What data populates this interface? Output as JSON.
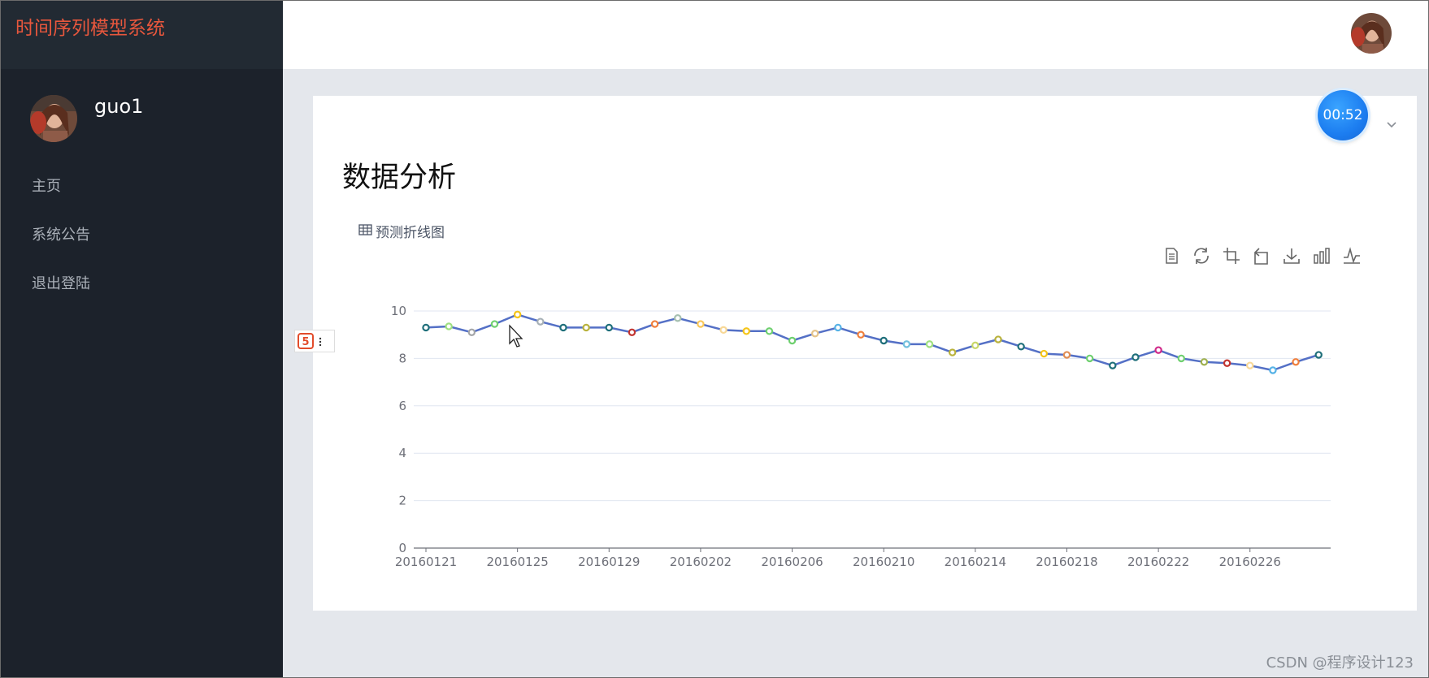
{
  "app": {
    "title": "时间序列模型系统",
    "user_name": "guo1"
  },
  "sidebar": {
    "items": [
      {
        "label": "主页"
      },
      {
        "label": "系统公告"
      },
      {
        "label": "退出登陆"
      }
    ]
  },
  "main": {
    "page_title": "数据分析",
    "tab_label": "预测折线图",
    "timer": "00:52",
    "toolbox": [
      "data-view-icon",
      "restore-icon",
      "zoom-icon",
      "zoom-reset-icon",
      "download-icon",
      "bar-chart-icon",
      "line-chart-icon"
    ]
  },
  "watermark": "CSDN @程序设计123",
  "colors": {
    "brand": "#e8573d",
    "sidebar_bg": "#1c222b",
    "line": "#5470c6",
    "timer": "#1c7df0"
  },
  "chart_data": {
    "type": "line",
    "ylim": [
      0,
      10
    ],
    "yticks": [
      0,
      2,
      4,
      6,
      8,
      10
    ],
    "xtick_labels": [
      "20160121",
      "20160125",
      "20160129",
      "20160202",
      "20160206",
      "20160210",
      "20160214",
      "20160218",
      "20160222",
      "20160226"
    ],
    "x": [
      "20160121",
      "20160122",
      "20160123",
      "20160124",
      "20160125",
      "20160126",
      "20160127",
      "20160128",
      "20160129",
      "20160130",
      "20160131",
      "20160201",
      "20160202",
      "20160203",
      "20160204",
      "20160205",
      "20160206",
      "20160207",
      "20160208",
      "20160209",
      "20160210",
      "20160211",
      "20160212",
      "20160213",
      "20160214",
      "20160215",
      "20160216",
      "20160217",
      "20160218",
      "20160219",
      "20160220",
      "20160221",
      "20160222",
      "20160223",
      "20160224",
      "20160225",
      "20160226",
      "20160227",
      "20160228",
      "20160229"
    ],
    "values": [
      9.3,
      9.35,
      9.1,
      9.45,
      9.85,
      9.55,
      9.3,
      9.3,
      9.3,
      9.1,
      9.45,
      9.7,
      9.45,
      9.2,
      9.15,
      9.15,
      8.75,
      9.05,
      9.3,
      9.0,
      8.75,
      8.6,
      8.6,
      8.25,
      8.55,
      8.8,
      8.5,
      8.2,
      8.15,
      8.0,
      7.7,
      8.05,
      8.35,
      8.0,
      7.85,
      7.8,
      7.7,
      7.5,
      7.85,
      8.15
    ],
    "point_colors": [
      "#1f6f7a",
      "#9fe080",
      "#a4a6a8",
      "#6fd06f",
      "#f5c518",
      "#a7b0b6",
      "#1f6f7a",
      "#b9b23c",
      "#1f6f7a",
      "#c23531",
      "#f07f3c",
      "#a7c0b0",
      "#fac858",
      "#f8d897",
      "#f5c518",
      "#6fd06f",
      "#6fd06f",
      "#e6c48a",
      "#56b2e6",
      "#f07f3c",
      "#1f6f7a",
      "#73c0de",
      "#9fe080",
      "#b9b23c",
      "#c9d86a",
      "#b9b23c",
      "#1f6f7a",
      "#f5c518",
      "#e08e55",
      "#6fd06f",
      "#1f6f7a",
      "#1f6f7a",
      "#d02a8a",
      "#6fd06f",
      "#9fb050",
      "#c23531",
      "#f8d897",
      "#56b2e6",
      "#f07f3c",
      "#1f6f7a"
    ]
  }
}
